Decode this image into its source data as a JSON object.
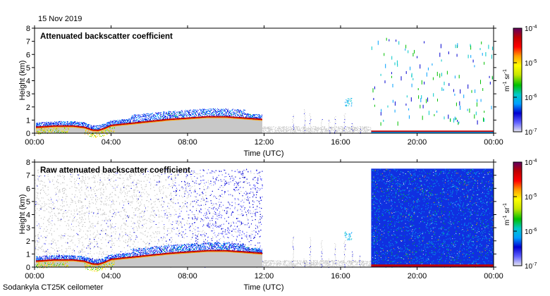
{
  "date_label": "15 Nov 2019",
  "instrument_label": "Sodankyla CT25K ceilometer",
  "colors": {
    "colormap": [
      "#e6e6f0",
      "#6060ff",
      "#0000d0",
      "#00a0ff",
      "#00c8c8",
      "#00c000",
      "#c8e600",
      "#ffff00",
      "#ffa000",
      "#ff0000",
      "#c00000",
      "#600060"
    ],
    "clear_grey": "#c8c8c8",
    "noise_blue": "#1030e0"
  },
  "chart_data": [
    {
      "type": "heatmap",
      "title": "Attenuated backscatter coefficient",
      "xlabel": "Time (UTC)",
      "ylabel": "Height (km)",
      "x_ticks": [
        "00:00",
        "04:00",
        "08:00",
        "12:00",
        "16:00",
        "20:00",
        "00:00"
      ],
      "y_ticks": [
        "0",
        "1",
        "2",
        "3",
        "4",
        "5",
        "6",
        "7",
        "8"
      ],
      "xlim_hours": [
        0,
        24
      ],
      "ylim_km": [
        0,
        8
      ],
      "cloud_base_profile": {
        "time_h": [
          0,
          1,
          2,
          2.6,
          3,
          3.3,
          3.6,
          4,
          5,
          6,
          7,
          8,
          9,
          10,
          11,
          11.9
        ],
        "height_km": [
          0.45,
          0.55,
          0.55,
          0.45,
          0.25,
          0.22,
          0.35,
          0.6,
          0.75,
          0.9,
          1.05,
          1.15,
          1.25,
          1.25,
          1.15,
          1.05
        ]
      },
      "low_layer_after_gap": {
        "time_h": [
          17.6,
          24
        ],
        "height_km": 0.1
      },
      "colorbar": {
        "label": "m-1 sr-1",
        "ticks": [
          "10^-7",
          "10^-6",
          "10^-5",
          "10^-4"
        ]
      }
    },
    {
      "type": "heatmap",
      "title": "Raw attenuated backscatter coefficient",
      "xlabel": "Time (UTC)",
      "ylabel": "Height (km)",
      "x_ticks": [
        "00:00",
        "04:00",
        "08:00",
        "12:00",
        "16:00",
        "20:00",
        "00:00"
      ],
      "y_ticks": [
        "0",
        "1",
        "2",
        "3",
        "4",
        "5",
        "6",
        "7",
        "8"
      ],
      "xlim_hours": [
        0,
        24
      ],
      "ylim_km": [
        0,
        8
      ],
      "data_top_km": 7.5,
      "gap_hours": [
        11.9,
        17.6
      ],
      "colorbar": {
        "label": "m-1 sr-1",
        "ticks": [
          "10^-7",
          "10^-6",
          "10^-5",
          "10^-4"
        ]
      }
    }
  ]
}
